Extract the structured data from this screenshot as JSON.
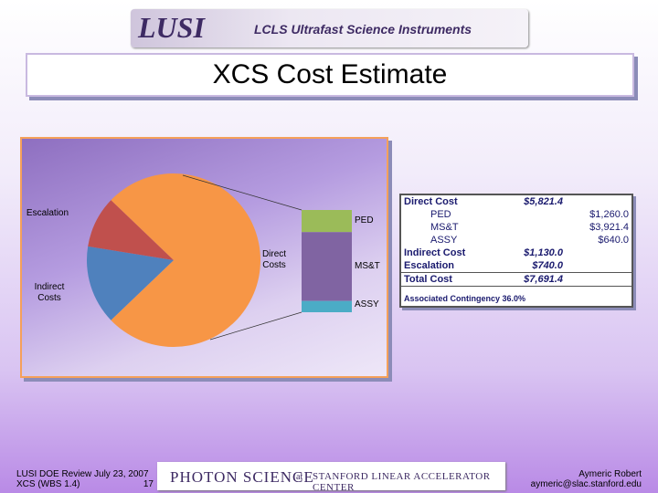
{
  "header": {
    "logo": "LUSI",
    "subtitle": "LCLS Ultrafast Science Instruments"
  },
  "title": "XCS Cost Estimate",
  "chart_data": {
    "type": "pie",
    "categories": [
      "Direct Costs",
      "Indirect Costs",
      "Escalation"
    ],
    "values": [
      5821.4,
      1130.0,
      740.0
    ],
    "colors": [
      "#f79646",
      "#4f81bd",
      "#c0504d"
    ],
    "bar": {
      "categories": [
        "PED",
        "MS&T",
        "ASSY"
      ],
      "values": [
        1260.0,
        3921.4,
        640.0
      ],
      "colors": [
        "#9bbb59",
        "#8064a2",
        "#4bacc6"
      ]
    }
  },
  "table": {
    "rows": [
      {
        "label": "Direct Cost",
        "cost": "$5,821.4"
      },
      {
        "label": "PED",
        "detail": "$1,260.0"
      },
      {
        "label": "MS&T",
        "detail": "$3,921.4"
      },
      {
        "label": "ASSY",
        "detail": "$640.0"
      },
      {
        "label": "Indirect Cost",
        "cost": "$1,130.0"
      },
      {
        "label": "Escalation",
        "cost": "$740.0"
      },
      {
        "label": "Total Cost",
        "cost": "$7,691.4"
      }
    ],
    "note": "Associated Contingency 36.0%"
  },
  "footer": {
    "event": "LUSI DOE Review July 23, 2007",
    "wbs": "XCS (WBS 1.4)",
    "page": "17",
    "banner_main": "PHOTON SCIENCE",
    "banner_at": "at",
    "banner_center": "STANFORD LINEAR ACCELERATOR CENTER",
    "author": "Aymeric Robert",
    "email": "aymeric@slac.stanford.edu"
  }
}
